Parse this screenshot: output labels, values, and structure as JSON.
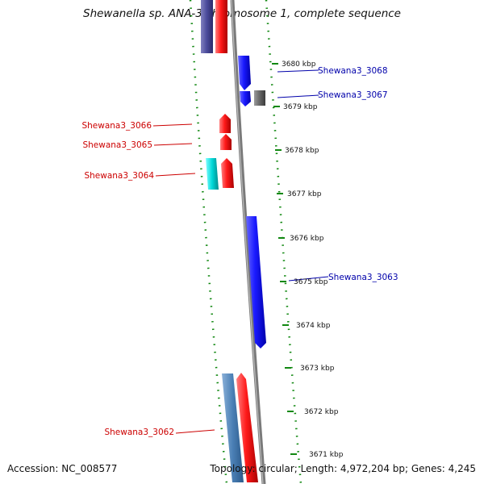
{
  "title": "Shewanella sp. ANA-3 chromosome 1, complete sequence",
  "footer": {
    "accession": "Accession: NC_008577",
    "topology_stats": "Topology: circular; Length: 4,972,204 bp; Genes: 4,245"
  },
  "colors": {
    "forward_gene": "#0000ee",
    "reverse_gene": "#ee0000",
    "forward_label": "#0000aa",
    "reverse_label": "#cc0000",
    "backbone": "#808080",
    "tick_guide": "#118811",
    "rna_gene": "#00cccc",
    "pseudo_gene": "#555555"
  },
  "scale": {
    "unit": "kbp",
    "ticks": [
      "3680 kbp",
      "3679 kbp",
      "3678 kbp",
      "3677 kbp",
      "3676 kbp",
      "3675 kbp",
      "3674 kbp",
      "3673 kbp",
      "3672 kbp",
      "3671 kbp"
    ]
  },
  "genes": [
    {
      "label": "Shewana3_3068",
      "strand": "forward",
      "type": "cds"
    },
    {
      "label": "Shewana3_3067",
      "strand": "forward",
      "type": "cds"
    },
    {
      "label": "Shewana3_3066",
      "strand": "reverse",
      "type": "cds"
    },
    {
      "label": "Shewana3_3065",
      "strand": "reverse",
      "type": "cds"
    },
    {
      "label": "Shewana3_3064",
      "strand": "reverse",
      "type": "cds"
    },
    {
      "label": "Shewana3_3063",
      "strand": "forward",
      "type": "cds"
    },
    {
      "label": "Shewana3_3062",
      "strand": "reverse",
      "type": "cds"
    }
  ]
}
